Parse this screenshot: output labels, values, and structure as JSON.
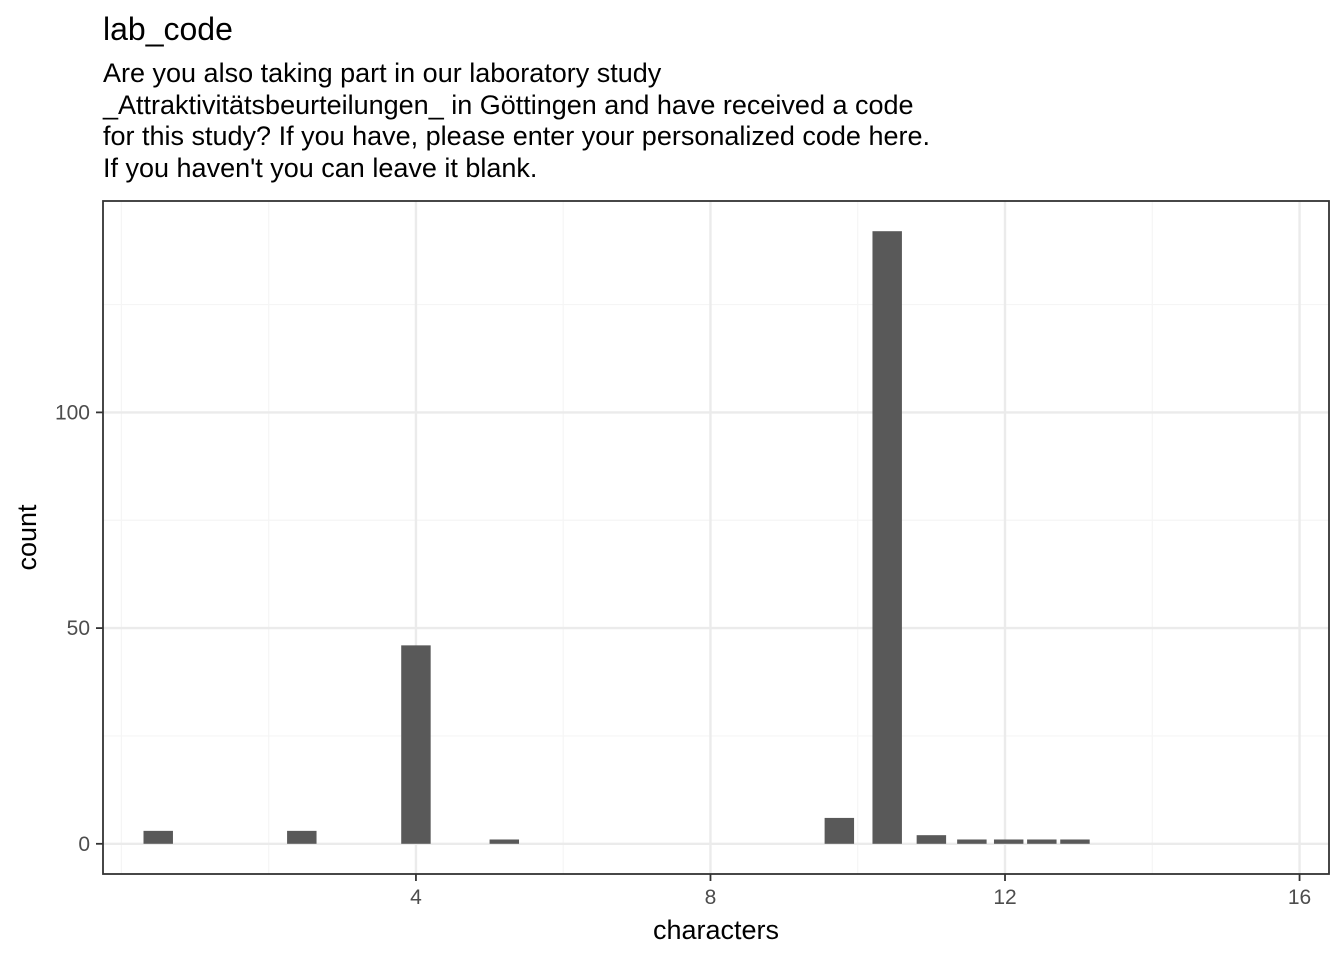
{
  "chart_data": {
    "type": "bar",
    "title": "lab_code",
    "subtitle": "Are you also taking part in our laboratory study\n_Attraktivitätsbeurteilungen_ in Göttingen and have received a code\nfor this study? If you have, please enter your personalized code here.\nIf you haven't you can leave it blank.",
    "xlabel": "characters",
    "ylabel": "count",
    "xlim": [
      -0.25,
      16.4
    ],
    "ylim": [
      -7,
      149
    ],
    "x_major_ticks": [
      4,
      8,
      12,
      16
    ],
    "x_minor_ticks": [
      0,
      2,
      6,
      10,
      14
    ],
    "y_major_ticks": [
      0,
      50,
      100
    ],
    "y_minor_ticks": [
      25,
      75,
      125
    ],
    "x_tick_labels": [
      "4",
      "8",
      "12",
      "16"
    ],
    "y_tick_labels": [
      "0",
      "50",
      "100"
    ],
    "grid": true,
    "bars": [
      {
        "x": 0.5,
        "value": 3
      },
      {
        "x": 2.45,
        "value": 3
      },
      {
        "x": 4.0,
        "value": 46
      },
      {
        "x": 5.2,
        "value": 1
      },
      {
        "x": 9.75,
        "value": 6
      },
      {
        "x": 10.4,
        "value": 142
      },
      {
        "x": 11.0,
        "value": 2
      },
      {
        "x": 11.55,
        "value": 1
      },
      {
        "x": 12.05,
        "value": 1
      },
      {
        "x": 12.5,
        "value": 1
      },
      {
        "x": 12.95,
        "value": 1
      }
    ],
    "colors": {
      "bar": "#595959",
      "grid_major": "#ebebeb",
      "grid_minor": "#f5f5f5",
      "panel_border": "#333333",
      "tick_text": "#4d4d4d"
    }
  }
}
